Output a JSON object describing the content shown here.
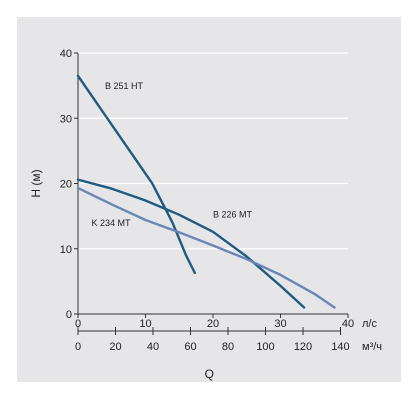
{
  "chart_data": {
    "type": "line",
    "title": "",
    "xlabel": "Q",
    "ylabel": "H (м)",
    "x_unit_primary": "л/с",
    "x_unit_secondary": "м³/ч",
    "xlim": [
      0,
      40
    ],
    "ylim": [
      0,
      40
    ],
    "x_ticks": [
      0,
      10,
      20,
      30,
      40
    ],
    "x_ticks_secondary": [
      0,
      20,
      40,
      60,
      80,
      100,
      120,
      140
    ],
    "y_ticks": [
      0,
      10,
      20,
      30,
      40
    ],
    "grid": true,
    "series": [
      {
        "name": "B 251 HT",
        "color": "#1f5a80",
        "x": [
          0,
          2,
          4,
          6,
          8,
          10,
          11,
          12,
          13,
          14,
          15,
          16,
          17.3
        ],
        "y": [
          36.5,
          33.5,
          30.5,
          27.5,
          24.5,
          21.5,
          20,
          18,
          16,
          14,
          11.5,
          9,
          6.3
        ]
      },
      {
        "name": "B 226 MT",
        "color": "#1f5a80",
        "x": [
          0,
          5,
          10,
          15,
          20,
          25,
          30,
          33.5
        ],
        "y": [
          20.6,
          19.2,
          17.4,
          15.2,
          12.6,
          8.8,
          4.3,
          1
        ]
      },
      {
        "name": "K 234 MT",
        "color": "#6a86b4",
        "x": [
          0,
          5,
          10,
          15,
          20,
          25,
          30,
          35,
          38
        ],
        "y": [
          19.3,
          16.8,
          14.4,
          12.5,
          10.5,
          8.4,
          6,
          3.1,
          1
        ]
      }
    ],
    "annotations": [
      {
        "text": "B 251 HT",
        "x": 4,
        "y": 34.5
      },
      {
        "text": "B 226 MT",
        "x": 20,
        "y": 14.8
      },
      {
        "text": "K 234 MT",
        "x": 2,
        "y": 13.5
      }
    ]
  }
}
